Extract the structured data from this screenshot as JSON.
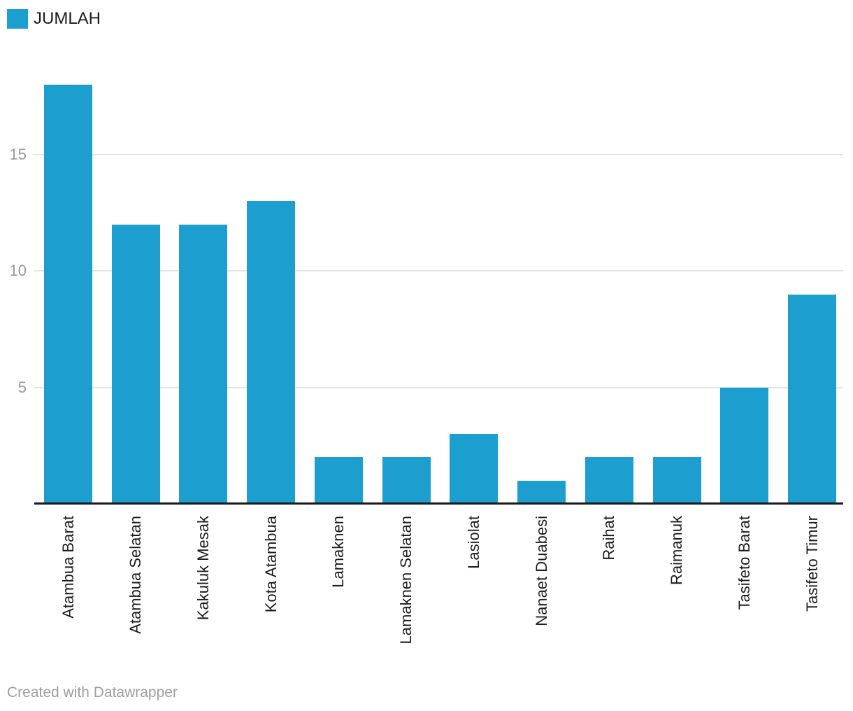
{
  "legend": {
    "label": "JUMLAH",
    "swatch_color": "#1C9FCE"
  },
  "footer": {
    "text": "Created with Datawrapper"
  },
  "chart_data": {
    "type": "bar",
    "title": "",
    "series": [
      {
        "name": "JUMLAH",
        "values": [
          18,
          12,
          12,
          13,
          2,
          2,
          3,
          1,
          2,
          2,
          5,
          9
        ]
      }
    ],
    "categories": [
      "Atambua Barat",
      "Atambua Selatan",
      "Kakuluk Mesak",
      "Kota Atambua",
      "Lamaknen",
      "Lamaknen Selatan",
      "Lasiolat",
      "Nanaet Duabesi",
      "Raihat",
      "Raimanuk",
      "Tasifeto Barat",
      "Tasifeto Timur"
    ],
    "xlabel": "",
    "ylabel": "",
    "ylim": [
      0,
      18
    ],
    "yticks": [
      5,
      10,
      15
    ],
    "grid": true,
    "bar_color": "#1C9FCE",
    "gridline_color": "#e4e4e4",
    "axis_line_color": "#1a1a1a",
    "tick_label_color": "#9b9b9b",
    "legend_position": "top-left",
    "x_label_rotation": -90
  }
}
